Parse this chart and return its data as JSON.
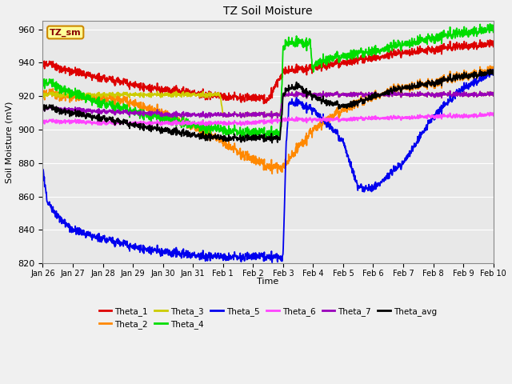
{
  "title": "TZ Soil Moisture",
  "xlabel": "Time",
  "ylabel": "Soil Moisture (mV)",
  "ylim": [
    820,
    965
  ],
  "yticks": [
    820,
    840,
    860,
    880,
    900,
    920,
    940,
    960
  ],
  "background_color": "#f0f0f0",
  "plot_bg_color": "#e8e8e8",
  "label_box_text": "TZ_sm",
  "label_box_bg": "#ffff99",
  "label_box_border": "#cc8800",
  "series_colors": {
    "Theta_1": "#dd0000",
    "Theta_2": "#ff8800",
    "Theta_3": "#cccc00",
    "Theta_4": "#00dd00",
    "Theta_5": "#0000ee",
    "Theta_6": "#ff44ff",
    "Theta_7": "#9900bb",
    "Theta_avg": "#000000"
  },
  "x_tick_labels": [
    "Jan 26",
    "Jan 27",
    "Jan 28",
    "Jan 29",
    "Jan 30",
    "Jan 31",
    "Feb 1",
    "Feb 2",
    "Feb 3",
    "Feb 4",
    "Feb 5",
    "Feb 6",
    "Feb 7",
    "Feb 8",
    "Feb 9",
    "Feb 10"
  ]
}
